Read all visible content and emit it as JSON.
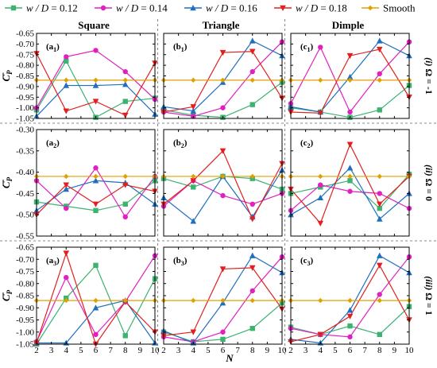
{
  "legend": {
    "items": [
      {
        "prefix": "w / D",
        "suffix": " = 0.12",
        "color": "#3cb371",
        "marker": "square"
      },
      {
        "prefix": "w / D",
        "suffix": " = 0.14",
        "color": "#e020c0",
        "marker": "circle"
      },
      {
        "prefix": "w / D",
        "suffix": " = 0.16",
        "color": "#1f6fc0",
        "marker": "triangle-up"
      },
      {
        "prefix": "w / D",
        "suffix": " = 0.18",
        "color": "#e02020",
        "marker": "triangle-down"
      },
      {
        "prefix": "",
        "suffix": "Smooth",
        "color": "#e0a000",
        "marker": "diamond"
      }
    ]
  },
  "columns": [
    "Square",
    "Triangle",
    "Dimple"
  ],
  "rows": [
    {
      "num": "(i)",
      "omega": "Ω = -1"
    },
    {
      "num": "(ii)",
      "omega": "Ω = 0"
    },
    {
      "num": "(iii)",
      "omega": "Ω = 1"
    }
  ],
  "ylabel_main": "C",
  "ylabel_sub": "P",
  "xlabel": "N",
  "chart_data": {
    "type": "line",
    "x": [
      2,
      3,
      4,
      5,
      6,
      7,
      8,
      9,
      10
    ],
    "xticks": [
      2,
      3,
      4,
      5,
      6,
      7,
      8,
      9,
      10
    ],
    "series_names": [
      "w / D = 0.12",
      "w / D = 0.14",
      "w / D = 0.16",
      "w / D = 0.18",
      "Smooth"
    ],
    "rows": [
      {
        "ylim": [
          -1.05,
          -0.65
        ],
        "yticks": [
          -0.65,
          -0.7,
          -0.75,
          -0.8,
          -0.85,
          -0.9,
          -0.95,
          -1.0,
          -1.05
        ],
        "ytick_labels": [
          "-0.65",
          "-0.70",
          "-0.75",
          "-0.80",
          "-0.85",
          "-0.90",
          "-0.95",
          "-1.00",
          "-1.05"
        ],
        "panels": [
          {
            "label_main": "(a",
            "label_sub": "1",
            "series": [
              {
                "x": [
                  2,
                  4,
                  6,
                  8,
                  10
                ],
                "y": [
                  -1.01,
                  -0.78,
                  -1.045,
                  -0.97,
                  -0.955
                ]
              },
              {
                "x": [
                  2,
                  4,
                  6,
                  8,
                  10
                ],
                "y": [
                  -1.0,
                  -0.76,
                  -0.73,
                  -0.83,
                  -0.96
                ]
              },
              {
                "x": [
                  2,
                  4,
                  6,
                  8,
                  10
                ],
                "y": [
                  -1.04,
                  -0.895,
                  -0.895,
                  -0.89,
                  -1.03
                ]
              },
              {
                "x": [
                  2,
                  4,
                  6,
                  8,
                  10
                ],
                "y": [
                  -0.745,
                  -1.015,
                  -0.97,
                  -1.035,
                  -0.79
                ]
              },
              {
                "x": [
                  2,
                  4,
                  6,
                  8,
                  10
                ],
                "y": [
                  -0.87,
                  -0.87,
                  -0.87,
                  -0.87,
                  -0.87
                ]
              }
            ]
          },
          {
            "label_main": "(b",
            "label_sub": "1",
            "series": [
              {
                "x": [
                  2,
                  4,
                  6,
                  8,
                  10
                ],
                "y": [
                  -1.01,
                  -1.035,
                  -1.045,
                  -0.985,
                  -0.88
                ]
              },
              {
                "x": [
                  2,
                  4,
                  6,
                  8,
                  10
                ],
                "y": [
                  -1.02,
                  -1.04,
                  -1.0,
                  -0.83,
                  -0.69
                ]
              },
              {
                "x": [
                  2,
                  4,
                  6,
                  8,
                  10
                ],
                "y": [
                  -0.995,
                  -1.015,
                  -0.88,
                  -0.685,
                  -0.755
                ]
              },
              {
                "x": [
                  2,
                  4,
                  6,
                  8,
                  10
                ],
                "y": [
                  -1.02,
                  -0.995,
                  -0.74,
                  -0.735,
                  -0.955
                ]
              },
              {
                "x": [
                  2,
                  4,
                  6,
                  8,
                  10
                ],
                "y": [
                  -0.87,
                  -0.87,
                  -0.87,
                  -0.87,
                  -0.87
                ]
              }
            ]
          },
          {
            "label_main": "(c",
            "label_sub": "1",
            "series": [
              {
                "x": [
                  2,
                  4,
                  6,
                  8,
                  10
                ],
                "y": [
                  -1.0,
                  -1.02,
                  -1.045,
                  -1.01,
                  -0.895
                ]
              },
              {
                "x": [
                  2,
                  4,
                  6,
                  8,
                  10
                ],
                "y": [
                  -0.98,
                  -0.715,
                  -1.02,
                  -0.84,
                  -0.69
                ]
              },
              {
                "x": [
                  2,
                  4,
                  6,
                  8,
                  10
                ],
                "y": [
                  -0.995,
                  -1.02,
                  -0.855,
                  -0.685,
                  -0.755
                ]
              },
              {
                "x": [
                  2,
                  4,
                  6,
                  8,
                  10
                ],
                "y": [
                  -1.02,
                  -1.025,
                  -0.755,
                  -0.725,
                  -0.95
                ]
              },
              {
                "x": [
                  2,
                  4,
                  6,
                  8,
                  10
                ],
                "y": [
                  -0.87,
                  -0.87,
                  -0.87,
                  -0.87,
                  -0.87
                ]
              }
            ]
          }
        ]
      },
      {
        "ylim": [
          -0.55,
          -0.3
        ],
        "yticks": [
          -0.3,
          -0.35,
          -0.4,
          -0.45,
          -0.5,
          -0.55
        ],
        "ytick_labels": [
          "-0.30",
          "-0.35",
          "-0.40",
          "-0.45",
          "-0.50",
          "-0.55"
        ],
        "panels": [
          {
            "label_main": "(a",
            "label_sub": "2",
            "series": [
              {
                "x": [
                  2,
                  4,
                  6,
                  8,
                  10
                ],
                "y": [
                  -0.47,
                  -0.48,
                  -0.49,
                  -0.475,
                  -0.42
                ]
              },
              {
                "x": [
                  2,
                  4,
                  6,
                  8,
                  10
                ],
                "y": [
                  -0.42,
                  -0.485,
                  -0.39,
                  -0.505,
                  -0.41
                ]
              },
              {
                "x": [
                  2,
                  4,
                  6,
                  8,
                  10
                ],
                "y": [
                  -0.49,
                  -0.44,
                  -0.42,
                  -0.425,
                  -0.475
                ]
              },
              {
                "x": [
                  2,
                  4,
                  6,
                  8,
                  10
                ],
                "y": [
                  -0.5,
                  -0.43,
                  -0.475,
                  -0.43,
                  -0.445
                ]
              },
              {
                "x": [
                  2,
                  4,
                  6,
                  8,
                  10
                ],
                "y": [
                  -0.41,
                  -0.41,
                  -0.41,
                  -0.41,
                  -0.41
                ]
              }
            ]
          },
          {
            "label_main": "(b",
            "label_sub": "2",
            "series": [
              {
                "x": [
                  2,
                  4,
                  6,
                  8,
                  10
                ],
                "y": [
                  -0.415,
                  -0.435,
                  -0.41,
                  -0.415,
                  -0.44
                ]
              },
              {
                "x": [
                  2,
                  4,
                  6,
                  8,
                  10
                ],
                "y": [
                  -0.48,
                  -0.42,
                  -0.455,
                  -0.475,
                  -0.45
                ]
              },
              {
                "x": [
                  2,
                  4,
                  6,
                  8,
                  10
                ],
                "y": [
                  -0.46,
                  -0.515,
                  -0.41,
                  -0.505,
                  -0.395
                ]
              },
              {
                "x": [
                  2,
                  4,
                  6,
                  8,
                  10
                ],
                "y": [
                  -0.475,
                  -0.42,
                  -0.35,
                  -0.51,
                  -0.38
                ]
              },
              {
                "x": [
                  2,
                  4,
                  6,
                  8,
                  10
                ],
                "y": [
                  -0.41,
                  -0.41,
                  -0.41,
                  -0.41,
                  -0.41
                ]
              }
            ]
          },
          {
            "label_main": "(c",
            "label_sub": "2",
            "series": [
              {
                "x": [
                  2,
                  4,
                  6,
                  8,
                  10
                ],
                "y": [
                  -0.45,
                  -0.435,
                  -0.42,
                  -0.485,
                  -0.405
                ]
              },
              {
                "x": [
                  2,
                  4,
                  6,
                  8,
                  10
                ],
                "y": [
                  -0.49,
                  -0.43,
                  -0.445,
                  -0.45,
                  -0.485
                ]
              },
              {
                "x": [
                  2,
                  4,
                  6,
                  8,
                  10
                ],
                "y": [
                  -0.5,
                  -0.46,
                  -0.39,
                  -0.51,
                  -0.45
                ]
              },
              {
                "x": [
                  2,
                  4,
                  6,
                  8,
                  10
                ],
                "y": [
                  -0.44,
                  -0.52,
                  -0.335,
                  -0.475,
                  -0.41
                ]
              },
              {
                "x": [
                  2,
                  4,
                  6,
                  8,
                  10
                ],
                "y": [
                  -0.41,
                  -0.41,
                  -0.41,
                  -0.41,
                  -0.41
                ]
              }
            ]
          }
        ]
      },
      {
        "ylim": [
          -1.05,
          -0.65
        ],
        "yticks": [
          -0.65,
          -0.7,
          -0.75,
          -0.8,
          -0.85,
          -0.9,
          -0.95,
          -1.0,
          -1.05
        ],
        "ytick_labels": [
          "-0.65",
          "-0.70",
          "-0.75",
          "-0.80",
          "-0.85",
          "-0.90",
          "-0.95",
          "-1.00",
          "-1.05"
        ],
        "panels": [
          {
            "label_main": "(a",
            "label_sub": "3",
            "series": [
              {
                "x": [
                  2,
                  4,
                  6,
                  8,
                  10
                ],
                "y": [
                  -1.05,
                  -0.86,
                  -0.725,
                  -1.015,
                  -0.78
                ]
              },
              {
                "x": [
                  2,
                  4,
                  6,
                  8,
                  10
                ],
                "y": [
                  -1.04,
                  -0.775,
                  -1.01,
                  -0.875,
                  -0.685
                ]
              },
              {
                "x": [
                  2,
                  4,
                  6,
                  8,
                  10
                ],
                "y": [
                  -1.045,
                  -1.045,
                  -0.9,
                  -0.87,
                  -1.045
                ]
              },
              {
                "x": [
                  2,
                  4,
                  6,
                  8,
                  10
                ],
                "y": [
                  -1.045,
                  -0.675,
                  -1.05,
                  -0.875,
                  -1.0
                ]
              },
              {
                "x": [
                  2,
                  4,
                  6,
                  8,
                  10
                ],
                "y": [
                  -0.87,
                  -0.87,
                  -0.87,
                  -0.87,
                  -0.87
                ]
              }
            ]
          },
          {
            "label_main": "(b",
            "label_sub": "3",
            "series": [
              {
                "x": [
                  2,
                  4,
                  6,
                  8,
                  10
                ],
                "y": [
                  -1.0,
                  -1.04,
                  -1.03,
                  -0.985,
                  -0.88
                ]
              },
              {
                "x": [
                  2,
                  4,
                  6,
                  8,
                  10
                ],
                "y": [
                  -1.02,
                  -1.04,
                  -1.0,
                  -0.83,
                  -0.69
                ]
              },
              {
                "x": [
                  2,
                  4,
                  6,
                  8,
                  10
                ],
                "y": [
                  -0.995,
                  -1.045,
                  -0.88,
                  -0.685,
                  -0.755
                ]
              },
              {
                "x": [
                  2,
                  4,
                  6,
                  8,
                  10
                ],
                "y": [
                  -1.015,
                  -1.0,
                  -0.74,
                  -0.735,
                  -0.905
                ]
              },
              {
                "x": [
                  2,
                  4,
                  6,
                  8,
                  10
                ],
                "y": [
                  -0.87,
                  -0.87,
                  -0.87,
                  -0.87,
                  -0.87
                ]
              }
            ]
          },
          {
            "label_main": "(c",
            "label_sub": "3",
            "series": [
              {
                "x": [
                  2,
                  4,
                  6,
                  8,
                  10
                ],
                "y": [
                  -0.98,
                  -1.01,
                  -0.975,
                  -1.01,
                  -0.895
                ]
              },
              {
                "x": [
                  2,
                  4,
                  6,
                  8,
                  10
                ],
                "y": [
                  -0.985,
                  -1.01,
                  -1.02,
                  -0.845,
                  -0.69
                ]
              },
              {
                "x": [
                  2,
                  4,
                  6,
                  8,
                  10
                ],
                "y": [
                  -1.03,
                  -1.045,
                  -0.91,
                  -0.685,
                  -0.755
                ]
              },
              {
                "x": [
                  2,
                  4,
                  6,
                  8,
                  10
                ],
                "y": [
                  -1.04,
                  -1.01,
                  -0.935,
                  -0.725,
                  -0.95
                ]
              },
              {
                "x": [
                  2,
                  4,
                  6,
                  8,
                  10
                ],
                "y": [
                  -0.87,
                  -0.87,
                  -0.87,
                  -0.87,
                  -0.87
                ]
              }
            ]
          }
        ]
      }
    ]
  }
}
